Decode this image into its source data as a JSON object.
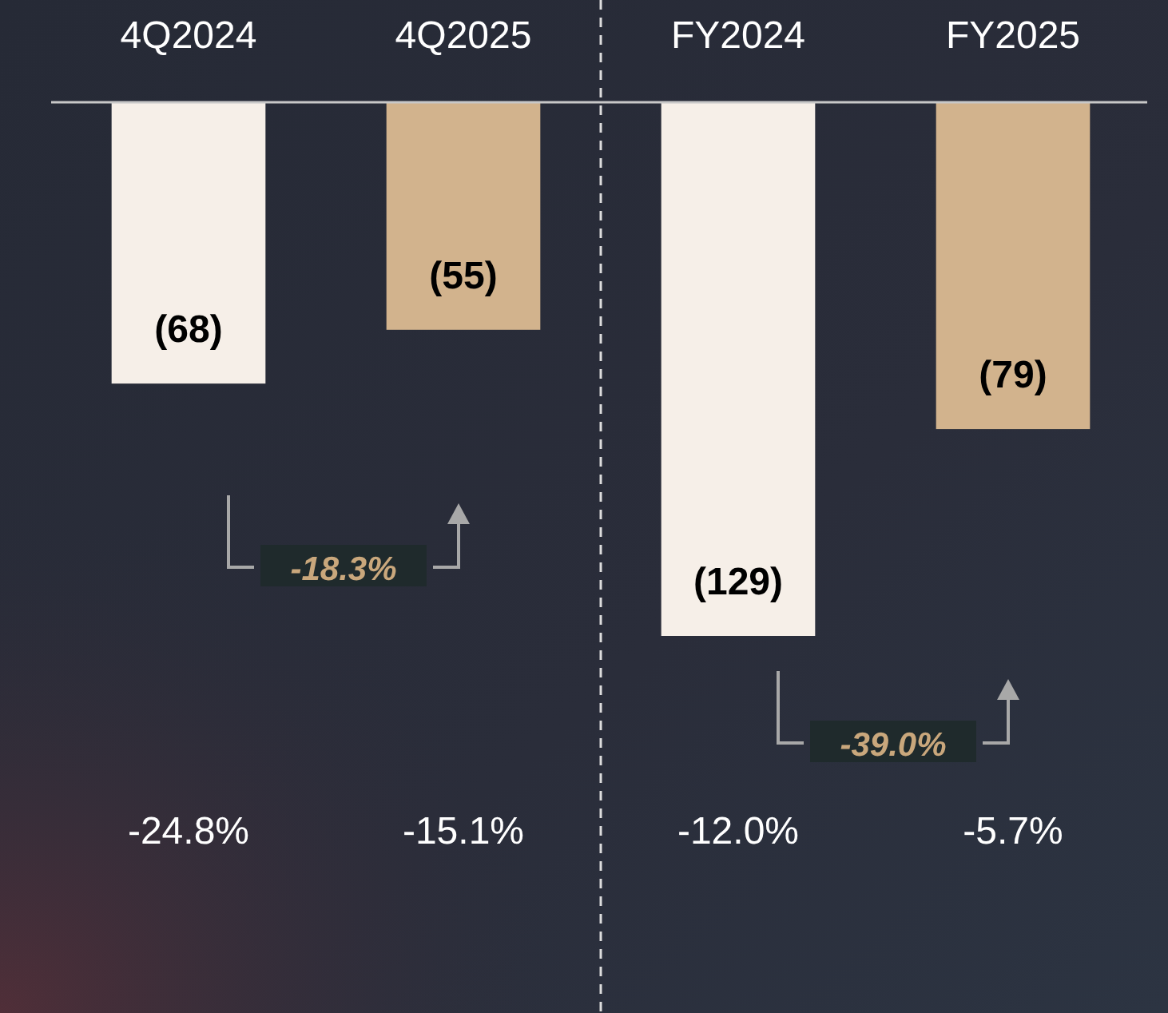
{
  "chart_data": {
    "type": "bar",
    "categories": [
      "4Q2024",
      "4Q2025",
      "FY2024",
      "FY2025"
    ],
    "values": [
      -68,
      -55,
      -129,
      -79
    ],
    "colors": [
      "#f6efe8",
      "#d2b38d",
      "#f6efe8",
      "#d2b38d"
    ],
    "value_labels": [
      "(68)",
      "(55)",
      "(129)",
      "(79)"
    ],
    "annotations": [
      "-18.3%",
      "-39.0%",
      "-24.8%",
      "-15.1%",
      "-12.0%",
      "-5.7%"
    ]
  }
}
